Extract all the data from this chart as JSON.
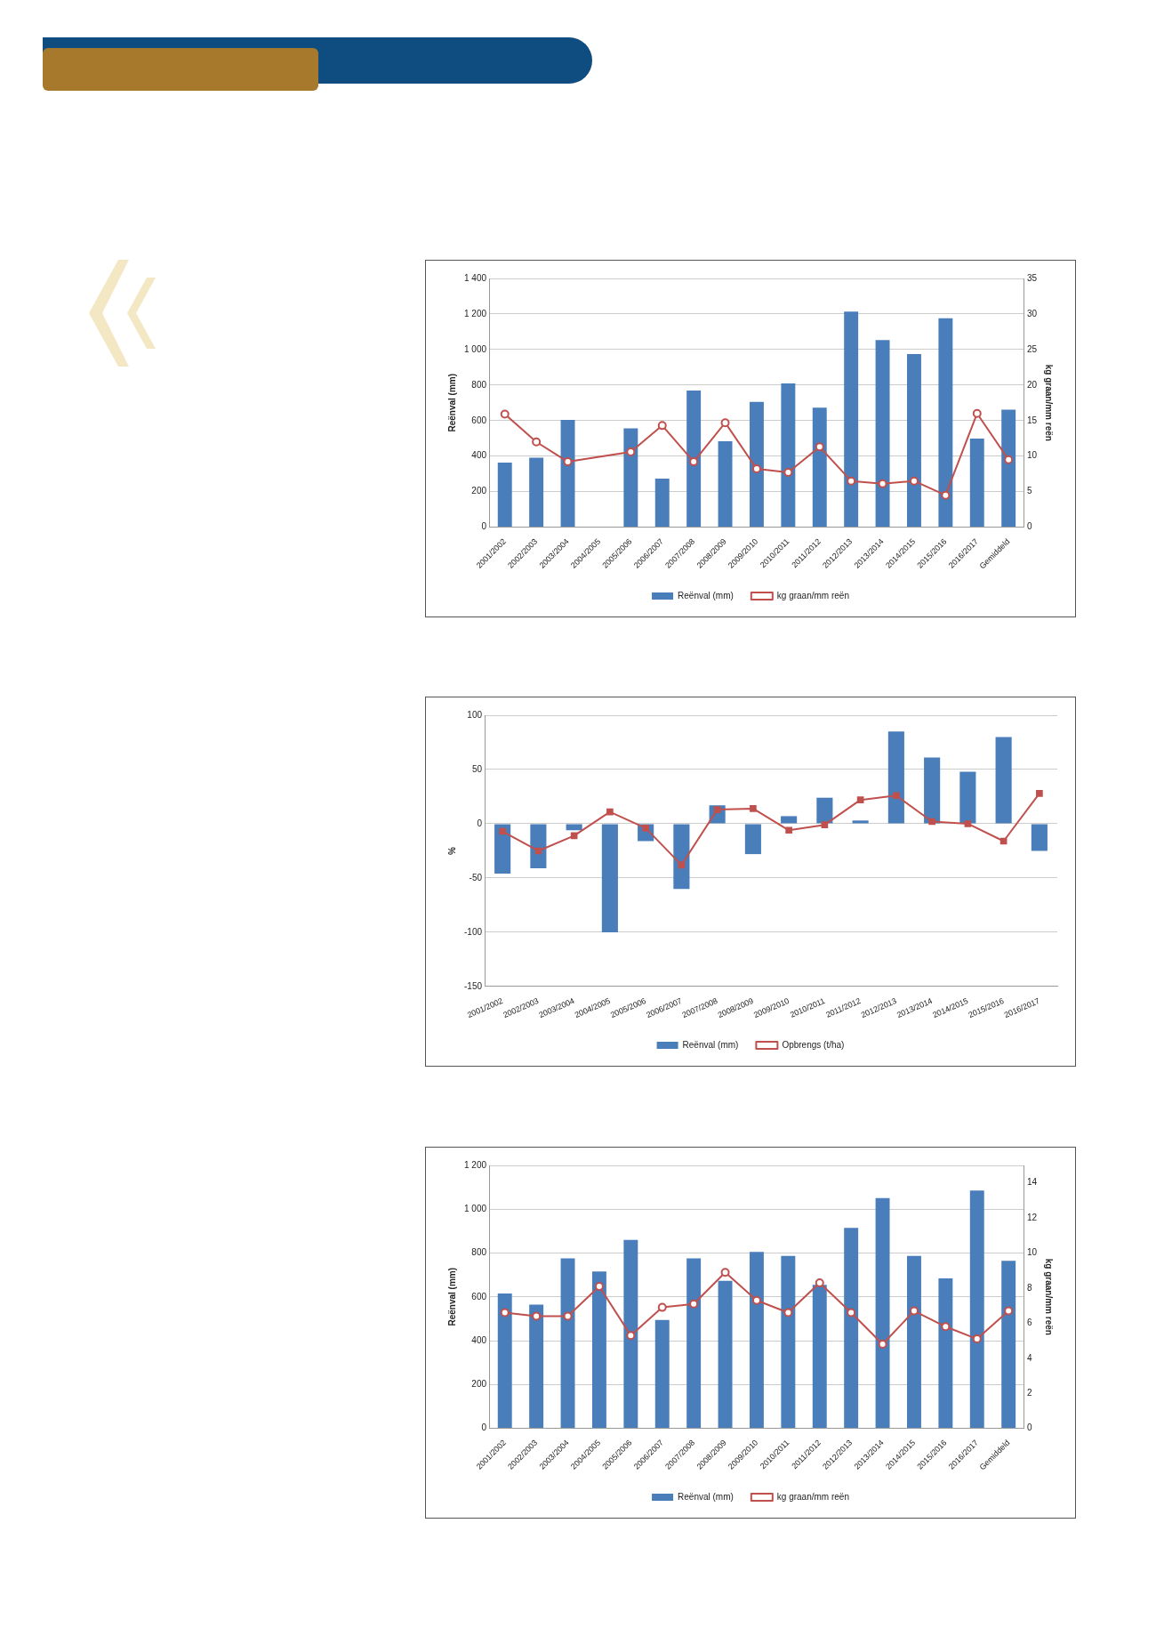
{
  "chart_data": [
    {
      "type": "bar",
      "categories": [
        "2001/2002",
        "2002/2003",
        "2003/2004",
        "2004/2005",
        "2005/2006",
        "2006/2007",
        "2007/2008",
        "2008/2009",
        "2009/2010",
        "2010/2011",
        "2011/2012",
        "2012/2013",
        "2013/2014",
        "2014/2015",
        "2015/2016",
        "2016/2017",
        "Gemiddeld"
      ],
      "series": [
        {
          "name": "Reënval (mm)",
          "color": "#4a7ebb",
          "values": [
            363,
            391,
            604,
            0,
            556,
            273,
            769,
            484,
            705,
            809,
            673,
            1213,
            1053,
            974,
            1176,
            499,
            662
          ]
        },
        {
          "name": "kg graan/mm reën",
          "type": "line",
          "axis": "y2",
          "color": "#c0504d",
          "values": [
            15.9,
            12.0,
            9.2,
            null,
            10.6,
            14.3,
            9.2,
            14.7,
            8.2,
            7.7,
            11.3,
            6.5,
            6.1,
            6.5,
            4.5,
            16.0,
            9.5
          ]
        }
      ],
      "ylabel": "Reënval (mm)",
      "y2label": "kg graan/mm reën",
      "ylim": [
        0,
        1400
      ],
      "yticks": [
        0,
        {
          "value": 200,
          "label": "200"
        },
        {
          "value": 400,
          "label": "400"
        },
        {
          "value": 600,
          "label": "600"
        },
        {
          "value": 800,
          "label": "800"
        },
        {
          "value": 1000,
          "label": "1 000"
        },
        {
          "value": 1200,
          "label": "1 200"
        },
        {
          "value": 1400,
          "label": "1 400"
        }
      ],
      "y2lim": [
        0,
        35
      ],
      "y2ticks": [
        0,
        5,
        10,
        15,
        20,
        25,
        30,
        35
      ],
      "grid": "y",
      "legend": "bottom",
      "marker": "circle"
    },
    {
      "type": "bar",
      "categories": [
        "2001/2002",
        "2002/2003",
        "2003/2004",
        "2004/2005",
        "2005/2006",
        "2006/2007",
        "2007/2008",
        "2008/2009",
        "2009/2010",
        "2010/2011",
        "2011/2012",
        "2012/2013",
        "2013/2014",
        "2014/2015",
        "2015/2016",
        "2016/2017"
      ],
      "series": [
        {
          "name": "Reënval (mm)",
          "color": "#4a7ebb",
          "values": [
            -46,
            -41,
            -6,
            -100,
            -16,
            -60,
            17,
            -28,
            7,
            24,
            3,
            85,
            61,
            48,
            80,
            -25
          ]
        },
        {
          "name": "Opbrengs (t/ha)",
          "type": "line",
          "color": "#c0504d",
          "values": [
            -7,
            -25,
            -11,
            11,
            -4,
            -38,
            13,
            14,
            -6,
            -1,
            22,
            26,
            2,
            0,
            -16,
            28
          ]
        }
      ],
      "ylabel": "%",
      "ylim": [
        -150,
        100
      ],
      "yticks": [
        -150,
        -100,
        -50,
        0,
        50,
        100
      ],
      "grid": "y",
      "legend": "bottom",
      "marker": "square"
    },
    {
      "type": "bar",
      "categories": [
        "2001/2002",
        "2002/2003",
        "2003/2004",
        "2004/2005",
        "2005/2006",
        "2006/2007",
        "2007/2008",
        "2008/2009",
        "2009/2010",
        "2010/2011",
        "2011/2012",
        "2012/2013",
        "2013/2014",
        "2014/2015",
        "2015/2016",
        "2016/2017",
        "Gemiddeld"
      ],
      "series": [
        {
          "name": "Reënval (mm)",
          "color": "#4a7ebb",
          "values": [
            615,
            565,
            776,
            716,
            860,
            495,
            776,
            673,
            805,
            787,
            655,
            915,
            1051,
            787,
            684,
            1085,
            765
          ]
        },
        {
          "name": "kg graan/mm reën",
          "type": "line",
          "axis": "y2",
          "color": "#c0504d",
          "values": [
            6.6,
            6.4,
            6.4,
            8.1,
            5.3,
            6.9,
            7.1,
            8.9,
            7.3,
            6.6,
            8.3,
            6.6,
            4.8,
            6.7,
            5.8,
            5.1,
            6.7
          ]
        }
      ],
      "ylabel": "Reënval (mm)",
      "y2label": "kg graan/mm reën",
      "ylim": [
        0,
        1200
      ],
      "yticks": [
        0,
        {
          "value": 200,
          "label": "200"
        },
        {
          "value": 400,
          "label": "400"
        },
        {
          "value": 600,
          "label": "600"
        },
        {
          "value": 800,
          "label": "800"
        },
        {
          "value": 1000,
          "label": "1 000"
        },
        {
          "value": 1200,
          "label": "1 200"
        }
      ],
      "y2lim": [
        0,
        15
      ],
      "y2ticks": [
        0,
        2,
        4,
        6,
        8,
        10,
        12,
        14
      ],
      "grid": "y",
      "legend": "bottom",
      "marker": "circle"
    }
  ]
}
